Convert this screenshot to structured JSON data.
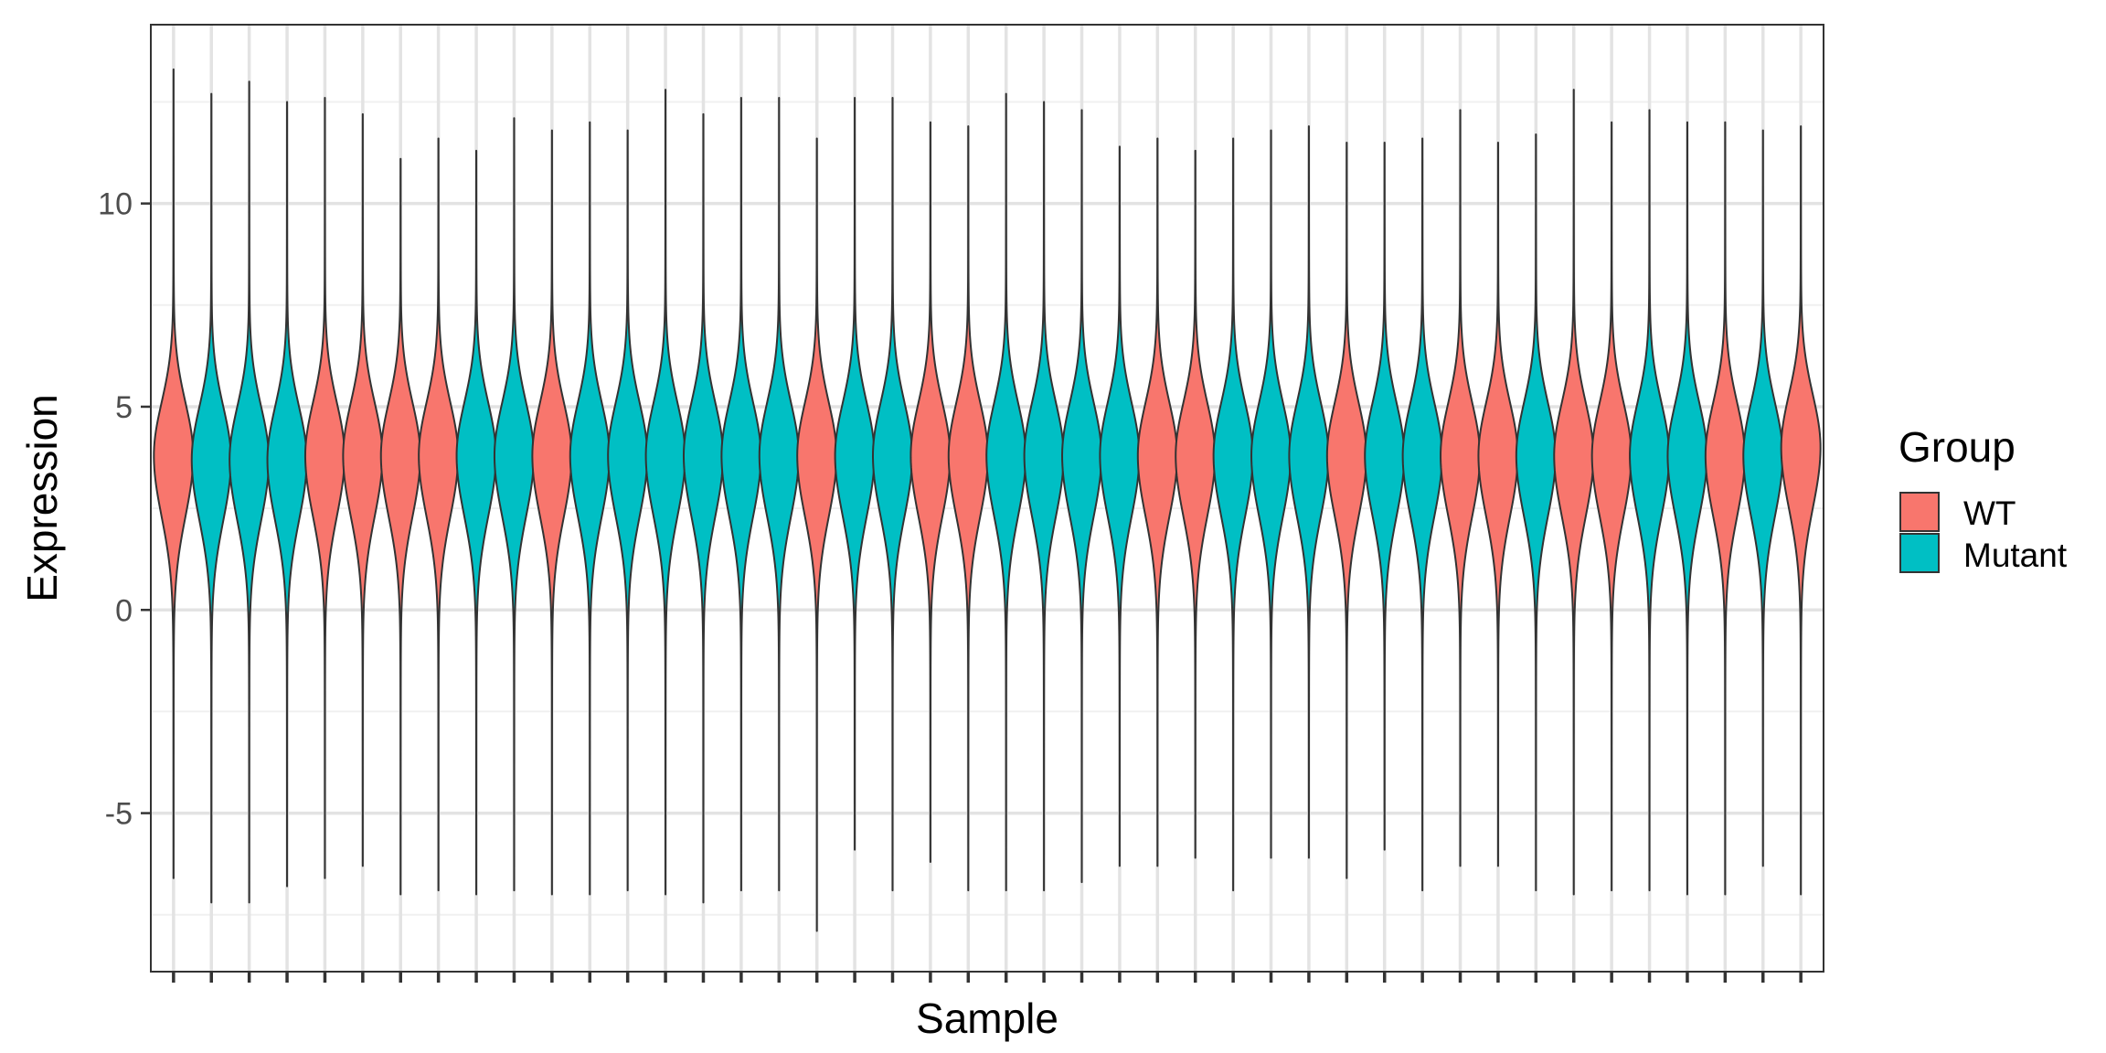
{
  "chart_data": {
    "type": "violin",
    "xlabel": "Sample",
    "ylabel": "Expression",
    "ylim": [
      -8.9,
      14.4
    ],
    "y_ticks": [
      -5,
      0,
      5,
      10
    ],
    "y_tick_labels": [
      "-5",
      "0",
      "5",
      "10"
    ],
    "x_tick_labels_visible": false,
    "grid": true,
    "legend": {
      "title": "Group",
      "position": "right",
      "entries": [
        {
          "label": "WT",
          "color": "#F8766D"
        },
        {
          "label": "Mutant",
          "color": "#00BFC4"
        }
      ]
    },
    "samples": [
      {
        "group": "WT",
        "max": 13.3,
        "min": -6.6,
        "median": 3.8
      },
      {
        "group": "Mutant",
        "max": 12.7,
        "min": -7.2,
        "median": 3.7
      },
      {
        "group": "Mutant",
        "max": 13.0,
        "min": -7.2,
        "median": 3.7
      },
      {
        "group": "Mutant",
        "max": 12.5,
        "min": -6.8,
        "median": 3.7
      },
      {
        "group": "WT",
        "max": 12.6,
        "min": -6.6,
        "median": 3.8
      },
      {
        "group": "WT",
        "max": 12.2,
        "min": -6.3,
        "median": 3.8
      },
      {
        "group": "WT",
        "max": 11.1,
        "min": -7.0,
        "median": 3.8
      },
      {
        "group": "WT",
        "max": 11.6,
        "min": -6.9,
        "median": 3.8
      },
      {
        "group": "Mutant",
        "max": 11.3,
        "min": -7.0,
        "median": 3.8
      },
      {
        "group": "Mutant",
        "max": 12.1,
        "min": -6.9,
        "median": 3.8
      },
      {
        "group": "WT",
        "max": 11.8,
        "min": -7.0,
        "median": 3.8
      },
      {
        "group": "Mutant",
        "max": 12.0,
        "min": -7.0,
        "median": 3.8
      },
      {
        "group": "Mutant",
        "max": 11.8,
        "min": -6.9,
        "median": 3.8
      },
      {
        "group": "Mutant",
        "max": 12.8,
        "min": -7.0,
        "median": 3.8
      },
      {
        "group": "Mutant",
        "max": 12.2,
        "min": -7.2,
        "median": 3.8
      },
      {
        "group": "Mutant",
        "max": 12.6,
        "min": -6.9,
        "median": 3.8
      },
      {
        "group": "Mutant",
        "max": 12.6,
        "min": -6.9,
        "median": 3.8
      },
      {
        "group": "WT",
        "max": 11.6,
        "min": -7.9,
        "median": 3.8
      },
      {
        "group": "Mutant",
        "max": 12.6,
        "min": -5.9,
        "median": 3.8
      },
      {
        "group": "Mutant",
        "max": 12.6,
        "min": -6.9,
        "median": 3.8
      },
      {
        "group": "WT",
        "max": 12.0,
        "min": -6.2,
        "median": 3.8
      },
      {
        "group": "WT",
        "max": 11.9,
        "min": -6.9,
        "median": 3.8
      },
      {
        "group": "Mutant",
        "max": 12.7,
        "min": -6.9,
        "median": 3.8
      },
      {
        "group": "Mutant",
        "max": 12.5,
        "min": -6.9,
        "median": 3.8
      },
      {
        "group": "Mutant",
        "max": 12.3,
        "min": -6.7,
        "median": 3.8
      },
      {
        "group": "Mutant",
        "max": 11.4,
        "min": -6.3,
        "median": 3.8
      },
      {
        "group": "WT",
        "max": 11.6,
        "min": -6.3,
        "median": 3.8
      },
      {
        "group": "WT",
        "max": 11.3,
        "min": -6.1,
        "median": 3.8
      },
      {
        "group": "Mutant",
        "max": 11.6,
        "min": -6.9,
        "median": 3.8
      },
      {
        "group": "Mutant",
        "max": 11.8,
        "min": -6.1,
        "median": 3.8
      },
      {
        "group": "Mutant",
        "max": 11.9,
        "min": -6.1,
        "median": 3.8
      },
      {
        "group": "WT",
        "max": 11.5,
        "min": -6.6,
        "median": 3.8
      },
      {
        "group": "Mutant",
        "max": 11.5,
        "min": -5.9,
        "median": 3.8
      },
      {
        "group": "Mutant",
        "max": 11.6,
        "min": -6.9,
        "median": 3.8
      },
      {
        "group": "WT",
        "max": 12.3,
        "min": -6.3,
        "median": 3.8
      },
      {
        "group": "WT",
        "max": 11.5,
        "min": -6.3,
        "median": 3.8
      },
      {
        "group": "Mutant",
        "max": 11.7,
        "min": -6.9,
        "median": 3.8
      },
      {
        "group": "WT",
        "max": 12.8,
        "min": -7.0,
        "median": 3.8
      },
      {
        "group": "WT",
        "max": 12.0,
        "min": -6.9,
        "median": 3.8
      },
      {
        "group": "Mutant",
        "max": 12.3,
        "min": -6.9,
        "median": 3.8
      },
      {
        "group": "Mutant",
        "max": 12.0,
        "min": -7.0,
        "median": 3.8
      },
      {
        "group": "WT",
        "max": 12.0,
        "min": -7.0,
        "median": 3.8
      },
      {
        "group": "Mutant",
        "max": 11.8,
        "min": -6.3,
        "median": 3.8
      },
      {
        "group": "WT",
        "max": 11.9,
        "min": -7.0,
        "median": 4.0
      }
    ]
  }
}
